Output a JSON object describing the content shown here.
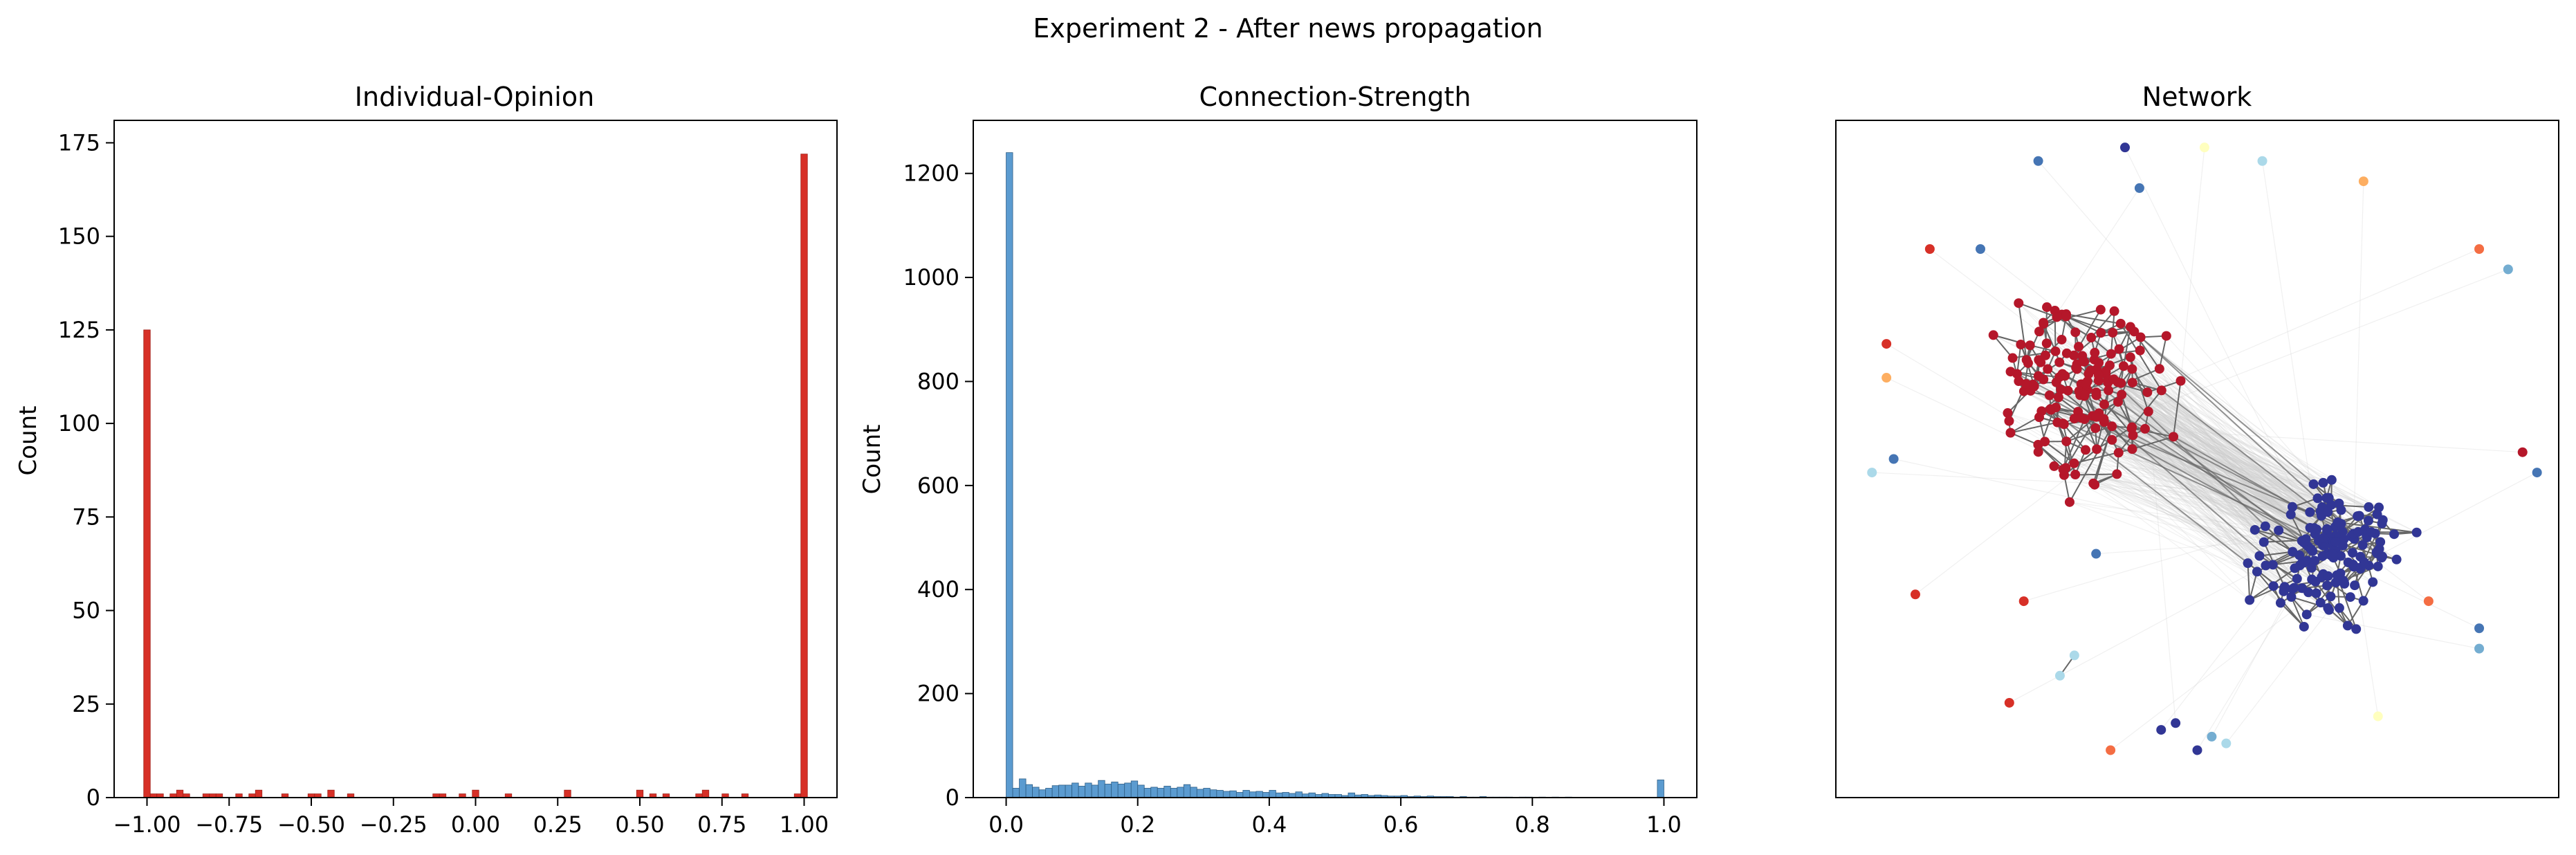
{
  "figure": {
    "suptitle": "Experiment 2 - After news propagation"
  },
  "chart_data": [
    {
      "type": "bar",
      "title": "Individual-Opinion",
      "xlabel": "",
      "ylabel": "Count",
      "xlim": [
        -1.1,
        1.1
      ],
      "ylim": [
        0,
        181
      ],
      "xticks": [
        -1.0,
        -0.75,
        -0.5,
        -0.25,
        0.0,
        0.25,
        0.5,
        0.75,
        1.0
      ],
      "xtick_labels": [
        "−1.00",
        "−0.75",
        "−0.50",
        "−0.25",
        "0.00",
        "0.25",
        "0.50",
        "0.75",
        "1.00"
      ],
      "yticks": [
        0,
        25,
        50,
        75,
        100,
        125,
        150,
        175
      ],
      "ytick_labels": [
        "0",
        "25",
        "50",
        "75",
        "100",
        "125",
        "150",
        "175"
      ],
      "bin_width": 0.02,
      "color": "#d73027",
      "bins": [
        {
          "x": -1.0,
          "count": 125
        },
        {
          "x": -0.98,
          "count": 1
        },
        {
          "x": -0.96,
          "count": 1
        },
        {
          "x": -0.92,
          "count": 1
        },
        {
          "x": -0.9,
          "count": 2
        },
        {
          "x": -0.88,
          "count": 1
        },
        {
          "x": -0.82,
          "count": 1
        },
        {
          "x": -0.8,
          "count": 1
        },
        {
          "x": -0.78,
          "count": 1
        },
        {
          "x": -0.72,
          "count": 1
        },
        {
          "x": -0.68,
          "count": 1
        },
        {
          "x": -0.66,
          "count": 2
        },
        {
          "x": -0.58,
          "count": 1
        },
        {
          "x": -0.5,
          "count": 1
        },
        {
          "x": -0.48,
          "count": 1
        },
        {
          "x": -0.44,
          "count": 2
        },
        {
          "x": -0.38,
          "count": 1
        },
        {
          "x": -0.12,
          "count": 1
        },
        {
          "x": -0.1,
          "count": 1
        },
        {
          "x": -0.04,
          "count": 1
        },
        {
          "x": 0.0,
          "count": 2
        },
        {
          "x": 0.1,
          "count": 1
        },
        {
          "x": 0.28,
          "count": 2
        },
        {
          "x": 0.5,
          "count": 2
        },
        {
          "x": 0.54,
          "count": 1
        },
        {
          "x": 0.58,
          "count": 1
        },
        {
          "x": 0.68,
          "count": 1
        },
        {
          "x": 0.7,
          "count": 2
        },
        {
          "x": 0.76,
          "count": 1
        },
        {
          "x": 0.82,
          "count": 1
        },
        {
          "x": 0.98,
          "count": 1
        },
        {
          "x": 1.0,
          "count": 172
        }
      ]
    },
    {
      "type": "bar",
      "title": "Connection-Strength",
      "xlabel": "",
      "ylabel": "Count",
      "xlim": [
        -0.05,
        1.05
      ],
      "ylim": [
        0,
        1302
      ],
      "xticks": [
        0.0,
        0.2,
        0.4,
        0.6,
        0.8,
        1.0
      ],
      "xtick_labels": [
        "0.0",
        "0.2",
        "0.4",
        "0.6",
        "0.8",
        "1.0"
      ],
      "yticks": [
        0,
        200,
        400,
        600,
        800,
        1000,
        1200
      ],
      "ytick_labels": [
        "0",
        "200",
        "400",
        "600",
        "800",
        "1000",
        "1200"
      ],
      "bin_width": 0.01,
      "color": "#5b9bd0",
      "counts": [
        1240,
        18,
        36,
        25,
        20,
        15,
        18,
        23,
        24,
        24,
        28,
        22,
        28,
        24,
        33,
        26,
        30,
        26,
        28,
        32,
        24,
        18,
        20,
        18,
        22,
        18,
        20,
        25,
        20,
        16,
        18,
        15,
        14,
        12,
        13,
        10,
        14,
        11,
        12,
        10,
        14,
        9,
        10,
        8,
        11,
        7,
        9,
        6,
        8,
        6,
        6,
        4,
        9,
        5,
        6,
        4,
        5,
        4,
        3,
        3,
        4,
        2,
        3,
        2,
        3,
        2,
        2,
        2,
        1,
        2,
        1,
        1,
        2,
        1,
        1,
        1,
        1,
        0,
        1,
        1,
        0,
        1,
        0,
        1,
        0,
        1,
        0,
        0,
        0,
        0,
        0,
        0,
        0,
        0,
        0,
        0,
        0,
        0,
        0,
        34
      ]
    },
    {
      "type": "scatter",
      "title": "Network",
      "xlim": [
        0,
        1
      ],
      "ylim": [
        0,
        1
      ],
      "axes": "off",
      "edge_color": "#666666",
      "faint_edge_color": "#cccccc",
      "colormap": "RdYlBu",
      "clusters": [
        {
          "name": "red",
          "color": "#b5172a",
          "center": [
            0.34,
            0.6
          ],
          "spread": [
            0.085,
            0.1
          ],
          "count": 150
        },
        {
          "name": "blue",
          "color": "#313695",
          "center": [
            0.68,
            0.36
          ],
          "spread": [
            0.08,
            0.085
          ],
          "count": 150
        }
      ],
      "isolated_nodes": [
        {
          "x": 0.28,
          "y": 0.94,
          "color": "#4575b4"
        },
        {
          "x": 0.4,
          "y": 0.96,
          "color": "#313695"
        },
        {
          "x": 0.42,
          "y": 0.9,
          "color": "#4575b4"
        },
        {
          "x": 0.51,
          "y": 0.96,
          "color": "#ffffbf"
        },
        {
          "x": 0.59,
          "y": 0.94,
          "color": "#abd9e9"
        },
        {
          "x": 0.73,
          "y": 0.91,
          "color": "#fdae61"
        },
        {
          "x": 0.13,
          "y": 0.81,
          "color": "#d73027"
        },
        {
          "x": 0.2,
          "y": 0.81,
          "color": "#4575b4"
        },
        {
          "x": 0.89,
          "y": 0.81,
          "color": "#f46d43"
        },
        {
          "x": 0.93,
          "y": 0.78,
          "color": "#74add1"
        },
        {
          "x": 0.07,
          "y": 0.67,
          "color": "#d73027"
        },
        {
          "x": 0.07,
          "y": 0.62,
          "color": "#fdae61"
        },
        {
          "x": 0.08,
          "y": 0.5,
          "color": "#4575b4"
        },
        {
          "x": 0.05,
          "y": 0.48,
          "color": "#abd9e9"
        },
        {
          "x": 0.95,
          "y": 0.51,
          "color": "#b5172a"
        },
        {
          "x": 0.97,
          "y": 0.48,
          "color": "#4575b4"
        },
        {
          "x": 0.11,
          "y": 0.3,
          "color": "#d73027"
        },
        {
          "x": 0.26,
          "y": 0.29,
          "color": "#d73027"
        },
        {
          "x": 0.36,
          "y": 0.36,
          "color": "#4575b4"
        },
        {
          "x": 0.82,
          "y": 0.29,
          "color": "#f46d43"
        },
        {
          "x": 0.89,
          "y": 0.25,
          "color": "#4575b4"
        },
        {
          "x": 0.89,
          "y": 0.22,
          "color": "#74add1"
        },
        {
          "x": 0.24,
          "y": 0.14,
          "color": "#d73027"
        },
        {
          "x": 0.38,
          "y": 0.07,
          "color": "#f46d43"
        },
        {
          "x": 0.45,
          "y": 0.1,
          "color": "#313695"
        },
        {
          "x": 0.47,
          "y": 0.11,
          "color": "#313695"
        },
        {
          "x": 0.54,
          "y": 0.08,
          "color": "#abd9e9"
        },
        {
          "x": 0.75,
          "y": 0.12,
          "color": "#ffffbf"
        },
        {
          "x": 0.52,
          "y": 0.09,
          "color": "#74add1"
        },
        {
          "x": 0.5,
          "y": 0.07,
          "color": "#313695"
        }
      ],
      "pair_edges": [
        {
          "a": [
            0.31,
            0.18
          ],
          "b": [
            0.33,
            0.21
          ],
          "a_color": "#abd9e9",
          "b_color": "#abd9e9"
        }
      ]
    }
  ]
}
